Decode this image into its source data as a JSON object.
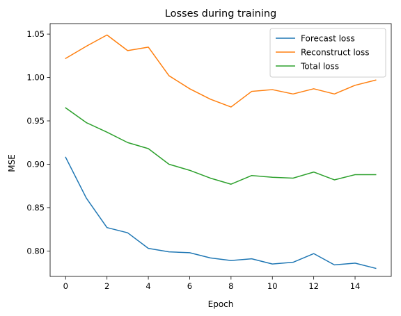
{
  "chart_data": {
    "type": "line",
    "title": "Losses during training",
    "xlabel": "Epoch",
    "ylabel": "MSE",
    "xlim": [
      -0.75,
      15.75
    ],
    "ylim": [
      0.7707,
      1.0621
    ],
    "xticks": [
      0,
      2,
      4,
      6,
      8,
      10,
      12,
      14
    ],
    "yticks": [
      0.8,
      0.85,
      0.9,
      0.95,
      1.0,
      1.05
    ],
    "legend_position": "top-right",
    "grid": false,
    "x": [
      0,
      1,
      2,
      3,
      4,
      5,
      6,
      7,
      8,
      9,
      10,
      11,
      12,
      13,
      14,
      15
    ],
    "series": [
      {
        "name": "Forecast loss",
        "color": "#1f77b4",
        "values": [
          0.908,
          0.861,
          0.827,
          0.821,
          0.803,
          0.799,
          0.798,
          0.792,
          0.789,
          0.791,
          0.785,
          0.787,
          0.797,
          0.784,
          0.786,
          0.78
        ]
      },
      {
        "name": "Reconstruct loss",
        "color": "#ff7f0e",
        "values": [
          1.022,
          1.036,
          1.049,
          1.031,
          1.035,
          1.002,
          0.987,
          0.975,
          0.966,
          0.984,
          0.986,
          0.981,
          0.987,
          0.981,
          0.991,
          0.997
        ]
      },
      {
        "name": "Total loss",
        "color": "#2ca02c",
        "values": [
          0.965,
          0.948,
          0.937,
          0.925,
          0.918,
          0.9,
          0.893,
          0.884,
          0.877,
          0.887,
          0.885,
          0.884,
          0.891,
          0.882,
          0.888,
          0.888
        ]
      }
    ]
  }
}
